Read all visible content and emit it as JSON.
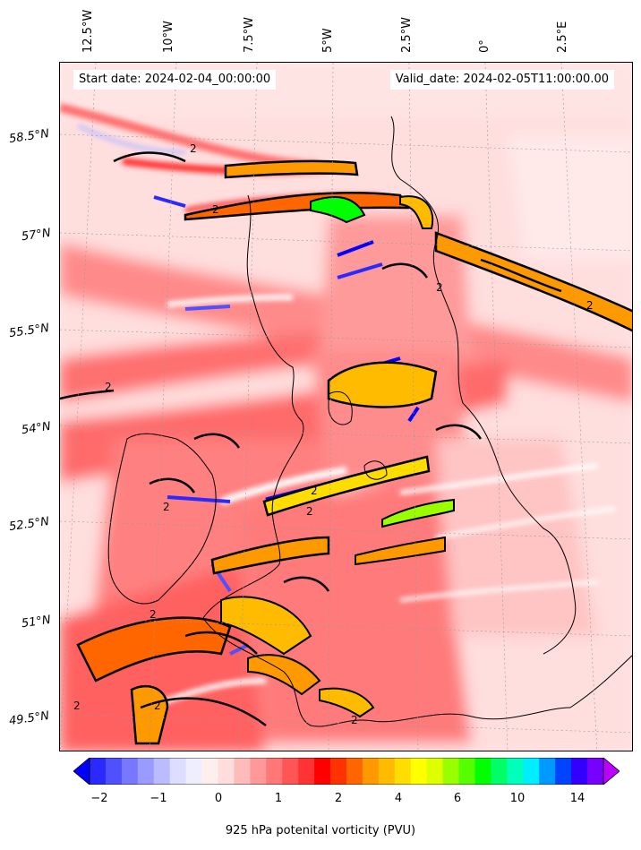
{
  "map": {
    "start_date": "Start date: 2024-02-04_00:00:00",
    "valid_date": "Valid_date: 2024-02-05T11:00:00.00",
    "lon_labels": [
      "12.5°W",
      "10°W",
      "7.5°W",
      "5°W",
      "2.5°W",
      "0°",
      "2.5°E"
    ],
    "lat_labels": [
      "58.5°N",
      "57°N",
      "55.5°N",
      "54°N",
      "52.5°N",
      "51°N",
      "49.5°N"
    ],
    "contour_label": "2",
    "colorbar": {
      "title": "925 hPa potenital vorticity (PVU)",
      "ticks": [
        "−2",
        "−1",
        "0",
        "1",
        "2",
        "4",
        "6",
        "10",
        "14"
      ],
      "colors": [
        "#0000ff",
        "#2a2aff",
        "#5050ff",
        "#7777ff",
        "#9a9aff",
        "#bbbbff",
        "#ddddff",
        "#eeeeff",
        "#ffeeee",
        "#ffdddd",
        "#ffbbbb",
        "#ff9999",
        "#ff7777",
        "#ff5555",
        "#ff3333",
        "#ff0000",
        "#ff3300",
        "#ff6600",
        "#ff9900",
        "#ffbb00",
        "#ffdd00",
        "#ffff00",
        "#ddff00",
        "#99ff00",
        "#55ff00",
        "#00ff00",
        "#00ff66",
        "#00ffbb",
        "#00eeff",
        "#0099ff",
        "#0044ff",
        "#3300ff",
        "#7700ff",
        "#bb00ff"
      ]
    }
  }
}
